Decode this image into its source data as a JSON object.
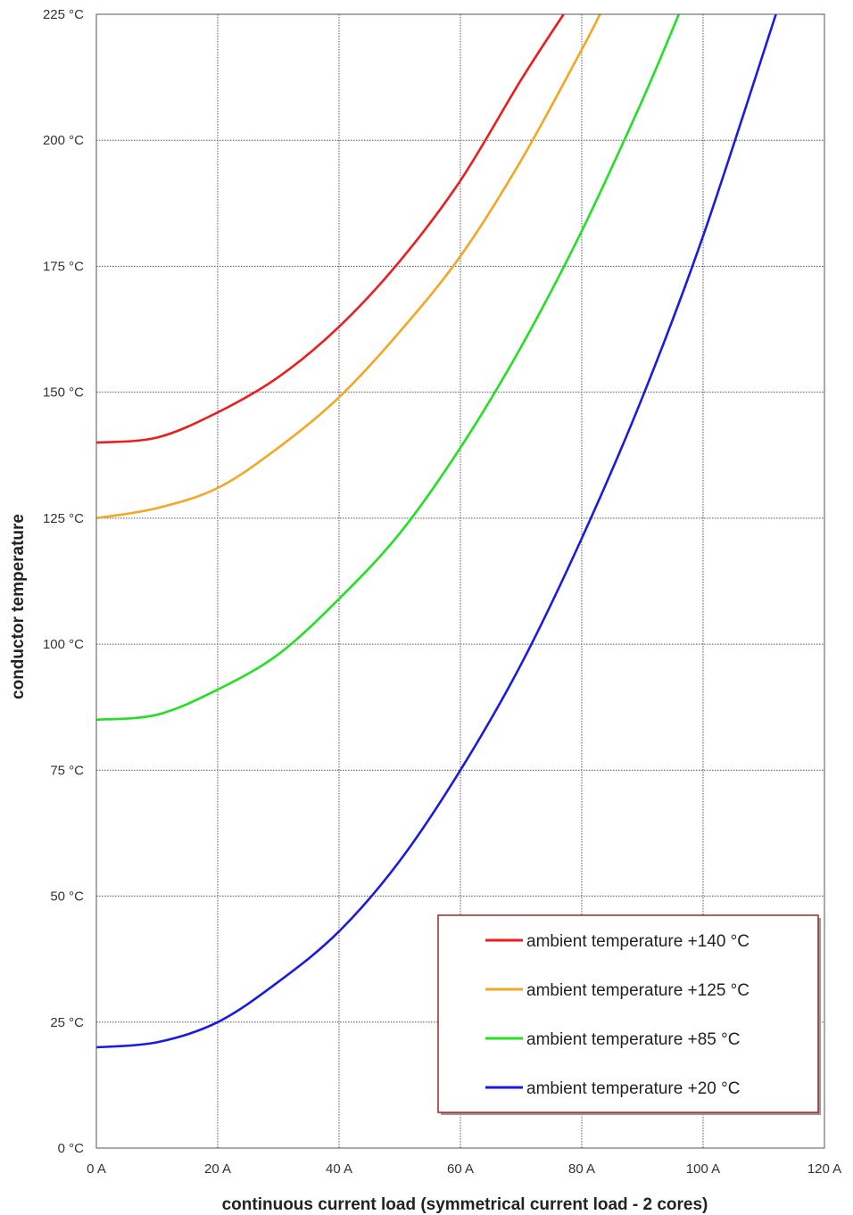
{
  "chart_data": {
    "type": "line",
    "title": "",
    "xlabel": "continuous current load (symmetrical current load - 2 cores)",
    "ylabel": "conductor temperature",
    "xlim": [
      0,
      120
    ],
    "ylim": [
      0,
      225
    ],
    "x_ticks": [
      "0 A",
      "20 A",
      "40 A",
      "60 A",
      "80 A",
      "100 A",
      "120 A"
    ],
    "y_ticks": [
      "0 °C",
      "25 °C",
      "50 °C",
      "75 °C",
      "100 °C",
      "125 °C",
      "150 °C",
      "175 °C",
      "200 °C",
      "225 °C"
    ],
    "grid": true,
    "legend_position": "bottom-right",
    "series": [
      {
        "name": "ambient temperature +140 °C",
        "color": "#ee1c1c",
        "x": [
          0,
          10,
          20,
          30,
          40,
          50,
          60,
          70,
          77
        ],
        "y": [
          140,
          141,
          146,
          153,
          163,
          176,
          192,
          212,
          225
        ]
      },
      {
        "name": "ambient temperature +125 °C",
        "color": "#f5a623",
        "x": [
          0,
          10,
          20,
          30,
          40,
          50,
          60,
          70,
          80,
          83
        ],
        "y": [
          125,
          127,
          131,
          139,
          149,
          162,
          177,
          196,
          218,
          225
        ]
      },
      {
        "name": "ambient temperature +85 °C",
        "color": "#22e022",
        "x": [
          0,
          10,
          20,
          30,
          40,
          50,
          60,
          70,
          80,
          90,
          96
        ],
        "y": [
          85,
          86,
          91,
          98,
          109,
          122,
          139,
          159,
          182,
          208,
          225
        ]
      },
      {
        "name": "ambient temperature +20 °C",
        "color": "#1a1ae6",
        "x": [
          0,
          10,
          20,
          30,
          40,
          50,
          60,
          70,
          80,
          90,
          100,
          112
        ],
        "y": [
          20,
          21,
          25,
          33,
          43,
          57,
          75,
          96,
          121,
          149,
          181,
          225
        ]
      }
    ]
  }
}
